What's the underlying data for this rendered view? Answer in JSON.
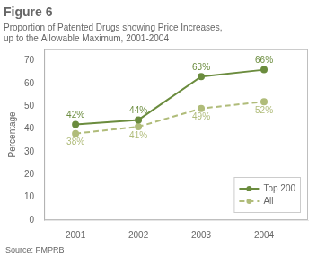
{
  "chart_data": {
    "type": "line",
    "title": "Figure 6",
    "subtitle": [
      "Proportion of Patented Drugs showing Price Increases,",
      "up to the Allowable Maximum, 2001-2004"
    ],
    "ylabel": "Percentage",
    "annotations": [
      "Source: PMPRB"
    ],
    "x": [
      2001,
      2002,
      2003,
      2004
    ],
    "xlim": [
      2000.5,
      2004.7
    ],
    "xticks": [
      2001,
      2002,
      2003,
      2004
    ],
    "ylim": [
      0,
      75
    ],
    "yticks": [
      0,
      10,
      20,
      30,
      40,
      50,
      60,
      70
    ],
    "grid": false,
    "legend": "lower right",
    "data_labels": true,
    "series": [
      {
        "name": "Top 200",
        "color": "#6b8c3e",
        "line_style": "solid",
        "marker": "circle",
        "values": [
          42,
          44,
          63,
          66
        ],
        "value_labels": [
          "42%",
          "44%",
          "63%",
          "66%"
        ]
      },
      {
        "name": "All",
        "color": "#b0bc7a",
        "line_style": "dashed",
        "marker": "circle",
        "values": [
          38,
          41,
          49,
          52
        ],
        "value_labels": [
          "38%",
          "41%",
          "49%",
          "52%"
        ]
      }
    ]
  }
}
